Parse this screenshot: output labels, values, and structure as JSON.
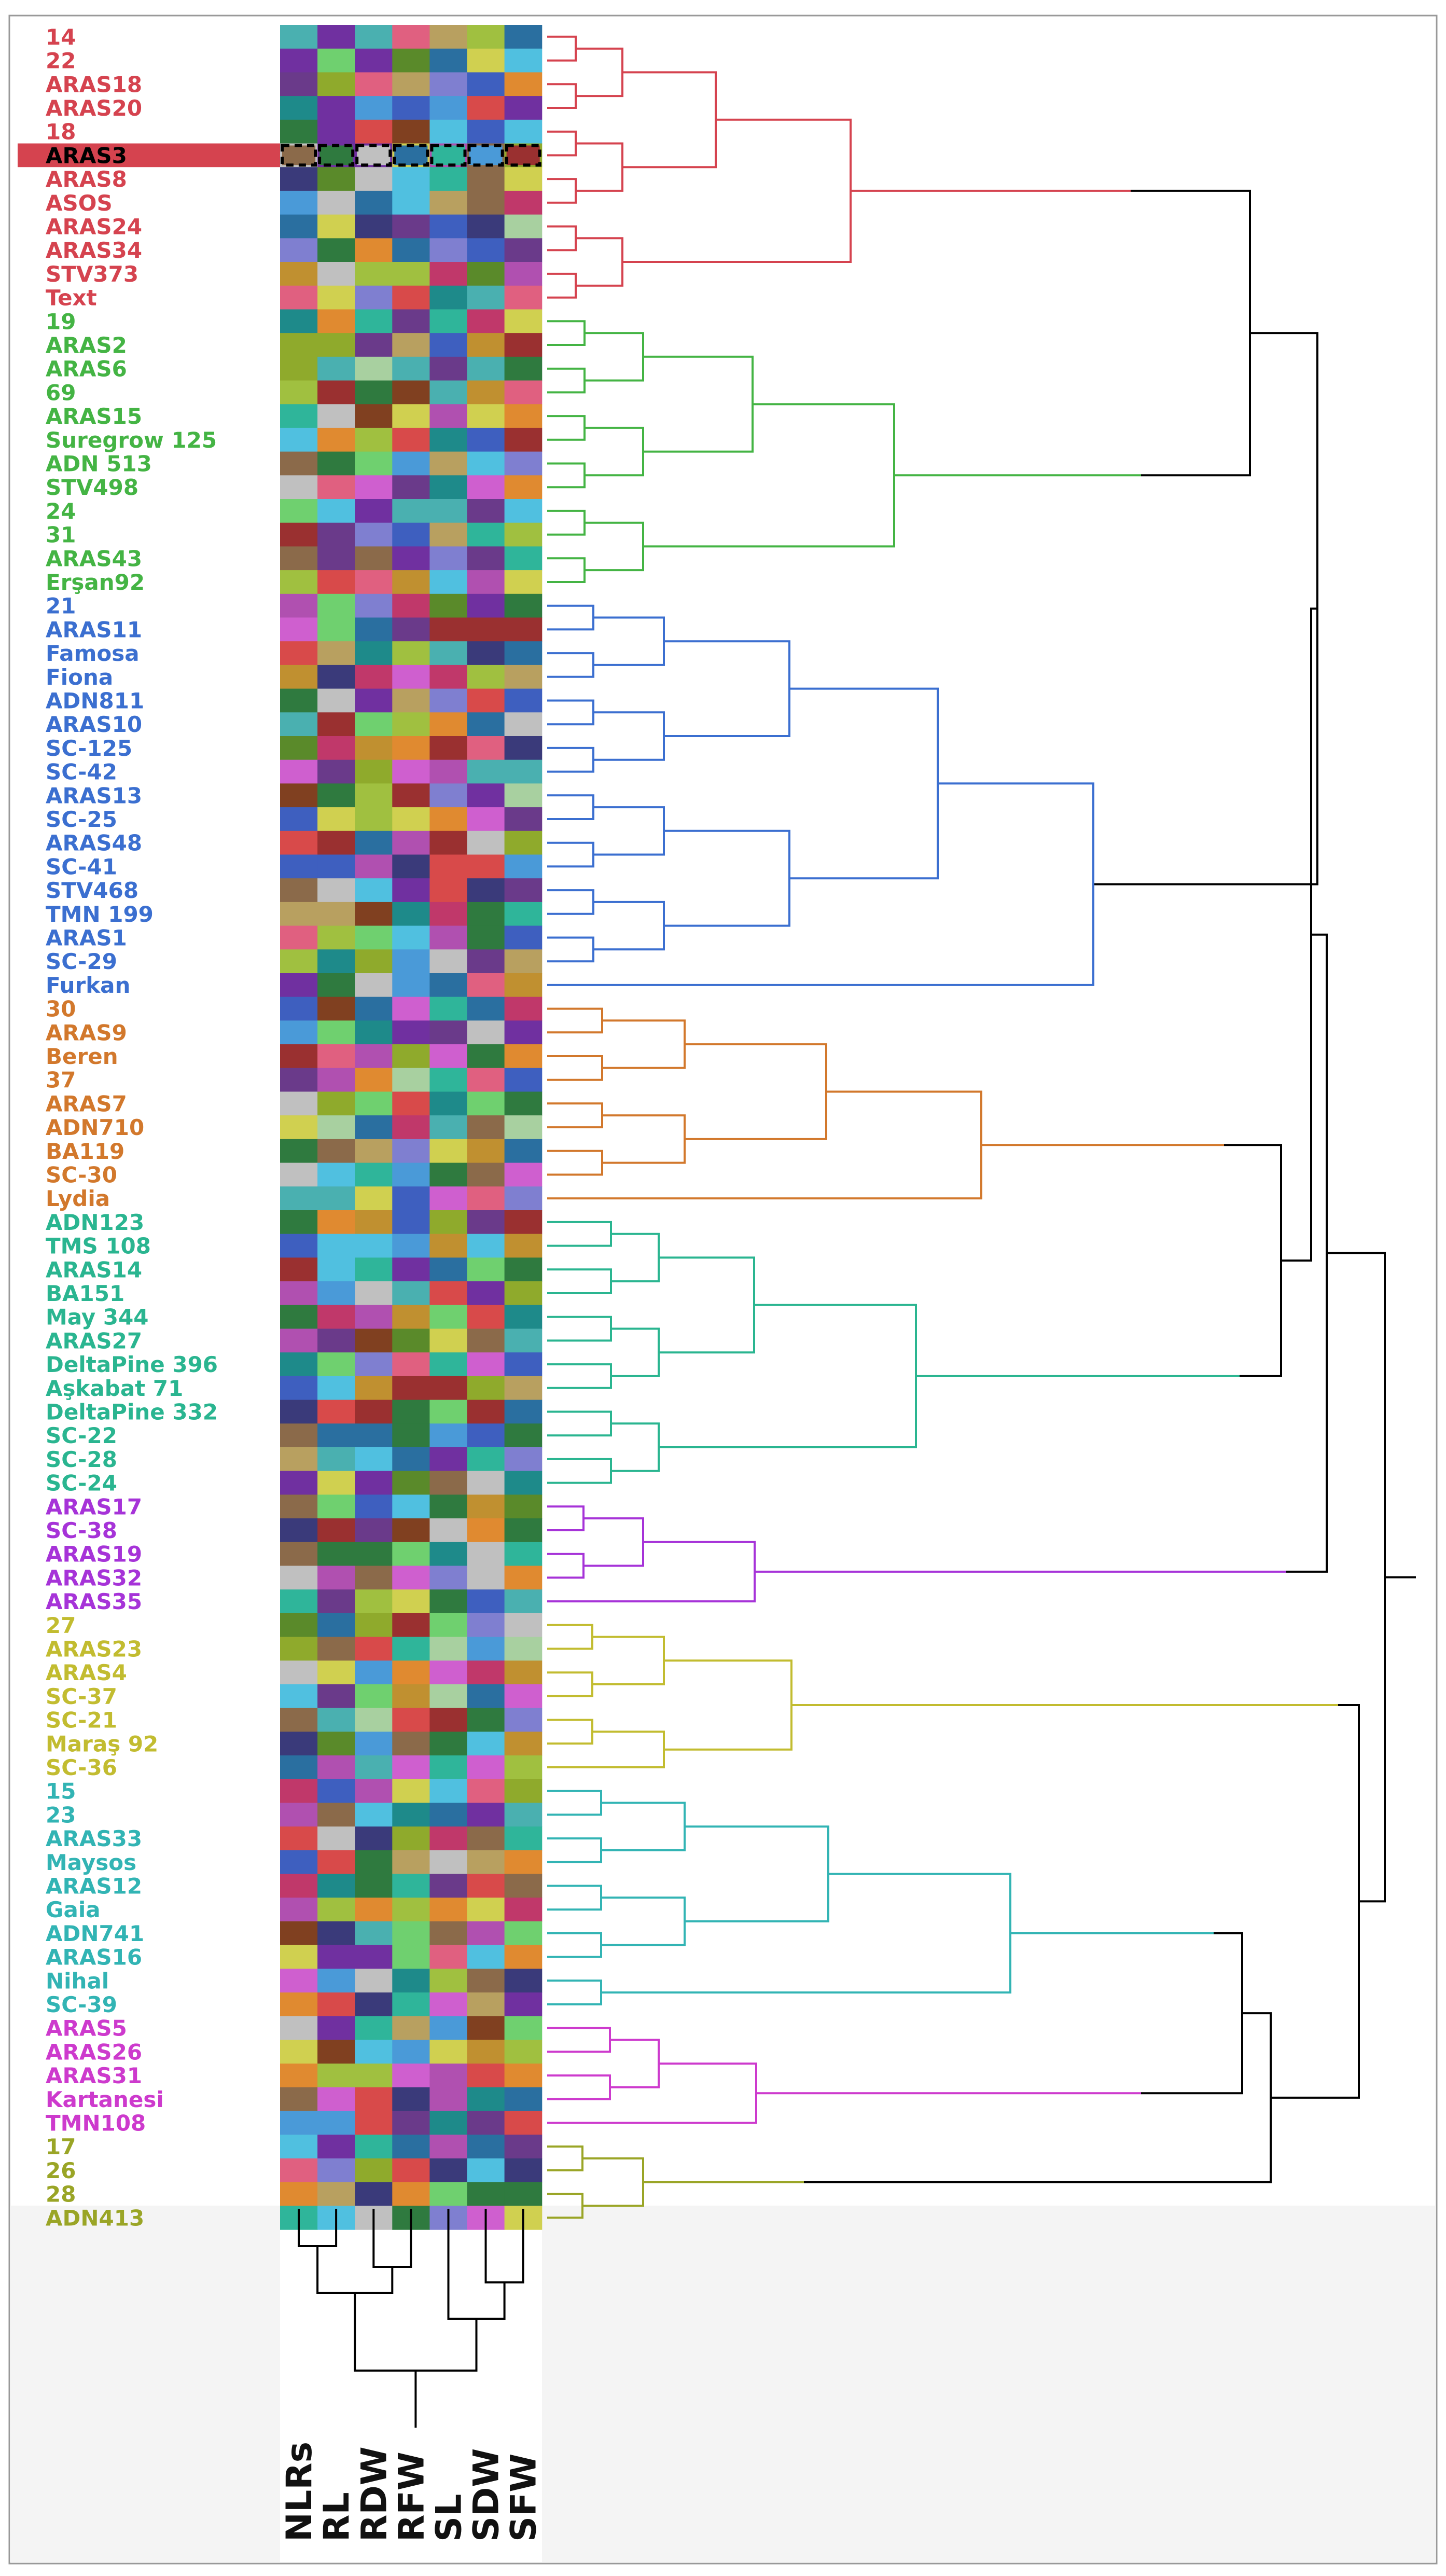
{
  "chart_data": {
    "type": "heatmap",
    "title": "",
    "traits": [
      "NLRs",
      "RL",
      "RDW",
      "RFW",
      "SL",
      "SDW",
      "SFW"
    ],
    "highlighted": "ARAS3",
    "clusters": [
      {
        "name": "cluster-1",
        "color": "#d5434f",
        "genotypes": [
          "14",
          "22",
          "ARAS18",
          "ARAS20",
          "18",
          "ARAS3",
          "ARAS8",
          "ASOS",
          "ARAS24",
          "ARAS34",
          "STV373",
          "Text"
        ]
      },
      {
        "name": "cluster-2",
        "color": "#44b444",
        "genotypes": [
          "19",
          "ARAS2",
          "ARAS6",
          "69",
          "ARAS15",
          "Suregrow 125",
          "ADN 513",
          "STV498",
          "24",
          "31",
          "ARAS43",
          "Erşan92"
        ]
      },
      {
        "name": "cluster-3",
        "color": "#3b6fd0",
        "genotypes": [
          "21",
          "ARAS11",
          "Famosa",
          "Fiona",
          "ADN811",
          "ARAS10",
          "SC-125",
          "SC-42",
          "ARAS13",
          "SC-25",
          "ARAS48",
          "SC-41",
          "STV468",
          "TMN 199",
          "ARAS1",
          "SC-29",
          "Furkan"
        ]
      },
      {
        "name": "cluster-4",
        "color": "#d2782c",
        "genotypes": [
          "30",
          "ARAS9",
          "Beren",
          "37",
          "ARAS7",
          "ADN710",
          "BA119",
          "SC-30",
          "Lydia"
        ]
      },
      {
        "name": "cluster-5",
        "color": "#2ab590",
        "genotypes": [
          "ADN123",
          "TMS 108",
          "ARAS14",
          "BA151",
          "May 344",
          "ARAS27",
          "DeltaPine 396",
          "Aşkabat 71",
          "DeltaPine 332",
          "SC-22",
          "SC-28",
          "SC-24"
        ]
      },
      {
        "name": "cluster-6",
        "color": "#a633d8",
        "genotypes": [
          "ARAS17",
          "SC-38",
          "ARAS19",
          "ARAS32",
          "ARAS35"
        ]
      },
      {
        "name": "cluster-7",
        "color": "#c2bc30",
        "genotypes": [
          "27",
          "ARAS23",
          "ARAS4",
          "SC-37",
          "SC-21",
          "Maraş 92",
          "SC-36"
        ]
      },
      {
        "name": "cluster-8",
        "color": "#32b4b4",
        "genotypes": [
          "15",
          "23",
          "ARAS33",
          "Maysos",
          "ARAS12",
          "Gaia",
          "ADN741",
          "ARAS16",
          "Nihal",
          "SC-39"
        ]
      },
      {
        "name": "cluster-9",
        "color": "#cd3acd",
        "genotypes": [
          "ARAS5",
          "ARAS26",
          "ARAS31",
          "Kartanesi",
          "TMN108"
        ]
      },
      {
        "name": "cluster-10",
        "color": "#9aa526",
        "genotypes": [
          "17",
          "26",
          "28",
          "ADN413"
        ]
      }
    ]
  }
}
